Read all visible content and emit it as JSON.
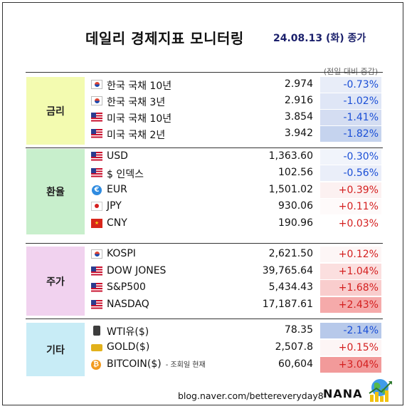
{
  "title": "데일리 경제지표 모니터링",
  "date": "24.08.13 (화) 종가",
  "change_note": "(전일 대비 증감)",
  "sections": [
    {
      "category": "금리",
      "color": "#f3fbb0",
      "rows": [
        {
          "icon": "korea-flag-icon",
          "name": "한국 국채 10년",
          "value": "2.974",
          "change": "-0.73%",
          "dir": "neg",
          "bg": "#e8edf8"
        },
        {
          "icon": "korea-flag-icon",
          "name": "한국 국채 3년",
          "value": "2.916",
          "change": "-1.02%",
          "dir": "neg",
          "bg": "#dfe6f6"
        },
        {
          "icon": "us-flag-icon",
          "name": "미국 국채 10년",
          "value": "3.854",
          "change": "-1.41%",
          "dir": "neg",
          "bg": "#d4ddf2"
        },
        {
          "icon": "us-flag-icon",
          "name": "미국 국채 2년",
          "value": "3.942",
          "change": "-1.82%",
          "dir": "neg",
          "bg": "#c5d3ee"
        }
      ]
    },
    {
      "category": "환율",
      "color": "#c8efcc",
      "rows": [
        {
          "icon": "us-flag-icon",
          "name": "USD",
          "value": "1,363.60",
          "change": "-0.30%",
          "dir": "neg",
          "bg": "#f1f4fb"
        },
        {
          "icon": "us-flag-icon",
          "name": "$ 인덱스",
          "value": "102.56",
          "change": "-0.56%",
          "dir": "neg",
          "bg": "#eaeef9"
        },
        {
          "icon": "eu-icon",
          "name": "EUR",
          "value": "1,501.02",
          "change": "+0.39%",
          "dir": "pos",
          "bg": "#fcf1f1"
        },
        {
          "icon": "japan-flag-icon",
          "name": "JPY",
          "value": "930.06",
          "change": "+0.11%",
          "dir": "pos",
          "bg": "#fefafa"
        },
        {
          "icon": "china-flag-icon",
          "name": "CNY",
          "value": "190.96",
          "change": "+0.03%",
          "dir": "pos",
          "bg": "#ffffff"
        }
      ]
    },
    {
      "category": "주가",
      "color": "#f1d2ef",
      "rows": [
        {
          "icon": "korea-flag-icon",
          "name": "KOSPI",
          "value": "2,621.50",
          "change": "+0.12%",
          "dir": "pos",
          "bg": "#fdf6f6"
        },
        {
          "icon": "us-flag-icon",
          "name": "DOW JONES",
          "value": "39,765.64",
          "change": "+1.04%",
          "dir": "pos",
          "bg": "#fbdfdf"
        },
        {
          "icon": "us-flag-icon",
          "name": "S&P500",
          "value": "5,434.43",
          "change": "+1.68%",
          "dir": "pos",
          "bg": "#f9cdcd"
        },
        {
          "icon": "us-flag-icon",
          "name": "NASDAQ",
          "value": "17,187.61",
          "change": "+2.43%",
          "dir": "pos",
          "bg": "#f5aaaa"
        }
      ]
    },
    {
      "category": "기타",
      "color": "#c8ecf6",
      "rows": [
        {
          "icon": "oil-icon",
          "name": "WTI유($)",
          "value": "78.35",
          "change": "-2.14%",
          "dir": "neg",
          "bg": "#b7c9ea"
        },
        {
          "icon": "gold-bar-icon",
          "name": "GOLD($)",
          "value": "2,507.8",
          "change": "+0.15%",
          "dir": "pos",
          "bg": "#fdf5f5"
        },
        {
          "icon": "bitcoin-icon",
          "name": "BITCOIN($)",
          "note": "- 조회일 현재",
          "value": "60,604",
          "change": "+3.04%",
          "dir": "pos",
          "bg": "#f29a9a"
        }
      ]
    }
  ],
  "footer": {
    "url": "blog.naver.com/bettereveryday8",
    "brand": "NANA"
  }
}
